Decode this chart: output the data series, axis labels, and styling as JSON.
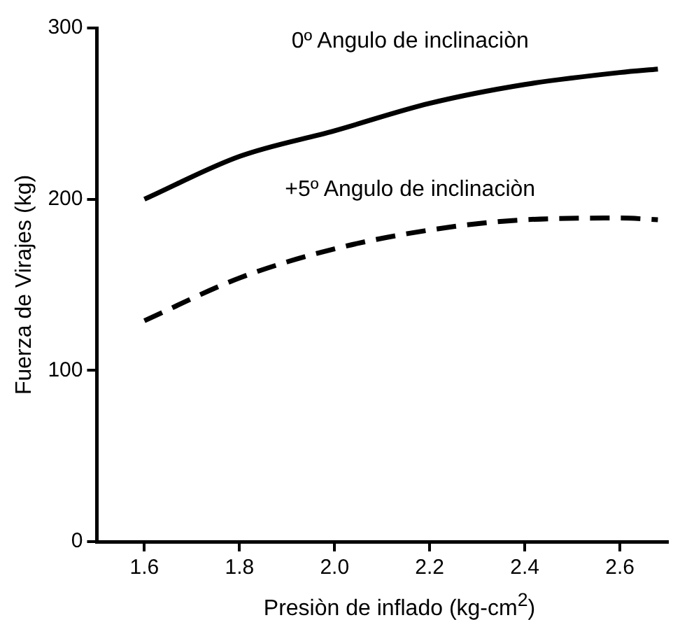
{
  "chart_data": {
    "type": "line",
    "xlabel": "Presiòn de inflado (kg-cm$^{2}$)",
    "ylabel": "Fuerza de Virajes (kg)",
    "x": [
      1.6,
      1.8,
      2.0,
      2.2,
      2.4,
      2.6,
      2.68
    ],
    "series": [
      {
        "name": "0º Angulo de inclinaciòn",
        "color": "#000000",
        "line_style": "solid",
        "values": [
          200,
          225,
          240,
          256,
          267,
          274,
          276
        ]
      },
      {
        "name": "+5º Angulo de inclinaciòn",
        "color": "#000000",
        "line_style": "dashed",
        "values": [
          129,
          154,
          171,
          182,
          188,
          189,
          188
        ]
      }
    ],
    "xlim": [
      1.5,
      2.7
    ],
    "xticks": [
      {
        "value": 1.6,
        "label": "1.6"
      },
      {
        "value": 1.8,
        "label": "1.8"
      },
      {
        "value": 2.0,
        "label": "2.0"
      },
      {
        "value": 2.2,
        "label": "2.2"
      },
      {
        "value": 2.4,
        "label": "2.4"
      },
      {
        "value": 2.6,
        "label": "2.6"
      }
    ],
    "ylim": [
      0,
      300
    ],
    "yticks": [
      0,
      100,
      200,
      300
    ],
    "grid": false,
    "legend": false,
    "marker": "none"
  }
}
